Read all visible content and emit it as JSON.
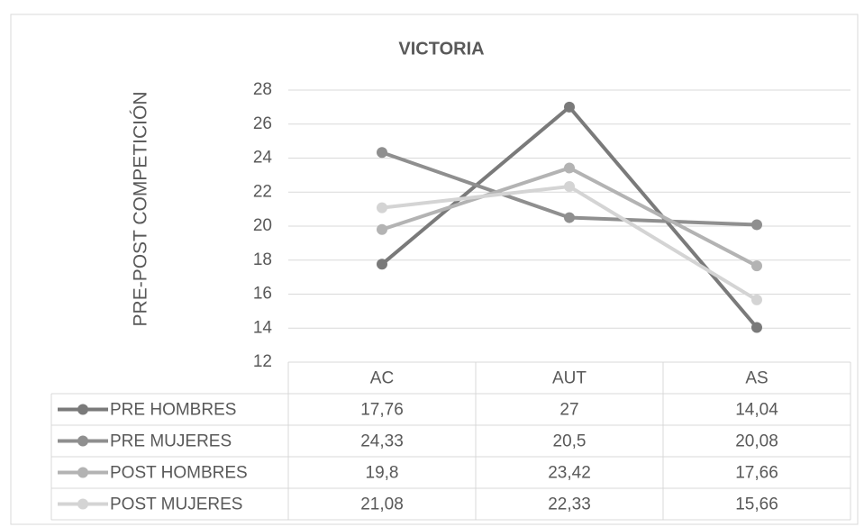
{
  "chart_data": {
    "type": "line",
    "title": "VICTORIA",
    "y_label": "PRE-POST COMPETICIÓN",
    "categories": [
      "AC",
      "AUT",
      "AS"
    ],
    "ylim": [
      12,
      28
    ],
    "yticks": [
      12,
      14,
      16,
      18,
      20,
      22,
      24,
      26,
      28
    ],
    "grid": true,
    "series": [
      {
        "name": "PRE HOMBRES",
        "color": "#7a7a7a",
        "values": [
          17.76,
          27,
          14.04
        ],
        "value_labels": [
          "17,76",
          "27",
          "14,04"
        ]
      },
      {
        "name": "PRE MUJERES",
        "color": "#8f8f8f",
        "values": [
          24.33,
          20.5,
          20.08
        ],
        "value_labels": [
          "24,33",
          "20,5",
          "20,08"
        ]
      },
      {
        "name": "POST HOMBRES",
        "color": "#b3b3b3",
        "values": [
          19.8,
          23.42,
          17.66
        ],
        "value_labels": [
          "19,8",
          "23,42",
          "17,66"
        ]
      },
      {
        "name": "POST MUJERES",
        "color": "#d4d4d4",
        "values": [
          21.08,
          22.33,
          15.66
        ],
        "value_labels": [
          "21,08",
          "22,33",
          "15,66"
        ]
      }
    ]
  }
}
